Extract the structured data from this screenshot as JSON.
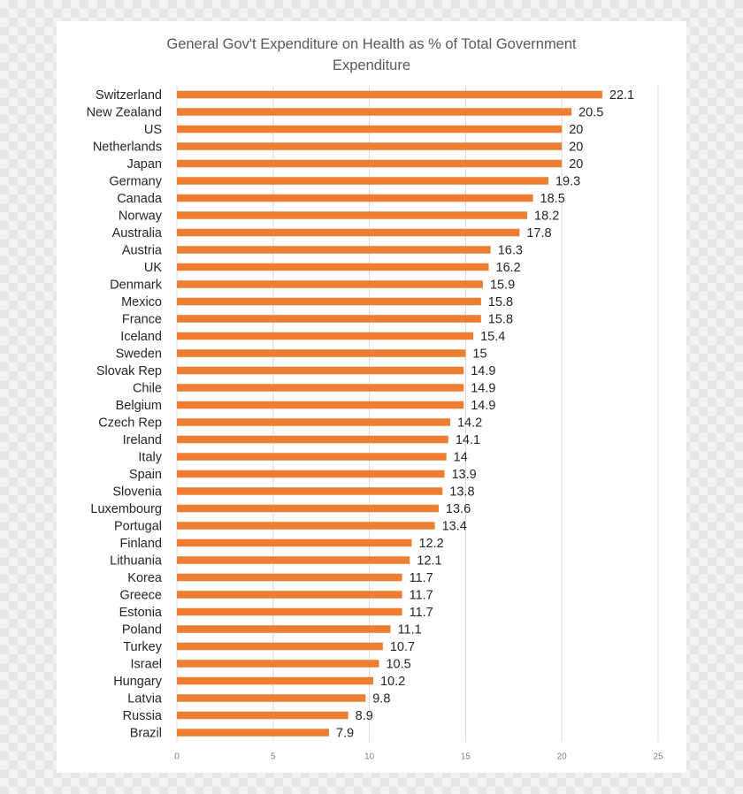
{
  "colors": {
    "bar": "#ED7D31",
    "grid": "#d9d9d9"
  },
  "chart_data": {
    "type": "bar",
    "orientation": "horizontal",
    "title": "General Gov't Expenditure on Health as % of Total Government Expenditure",
    "title_lines": [
      "General Gov't Expenditure on Health as % of Total Government",
      "Expenditure"
    ],
    "xlabel": "",
    "ylabel": "",
    "xlim": [
      0,
      25
    ],
    "xticks": [
      "0",
      "5",
      "10",
      "15",
      "20",
      "25"
    ],
    "grid": true,
    "legend": "none",
    "categories": [
      "Switzerland",
      "New Zealand",
      "US",
      "Netherlands",
      "Japan",
      "Germany",
      "Canada",
      "Norway",
      "Australia",
      "Austria",
      "UK",
      "Denmark",
      "Mexico",
      "France",
      "Iceland",
      "Sweden",
      "Slovak Rep",
      "Chile",
      "Belgium",
      "Czech Rep",
      "Ireland",
      "Italy",
      "Spain",
      "Slovenia",
      "Luxembourg",
      "Portugal",
      "Finland",
      "Lithuania",
      "Korea",
      "Greece",
      "Estonia",
      "Poland",
      "Turkey",
      "Israel",
      "Hungary",
      "Latvia",
      "Russia",
      "Brazil"
    ],
    "values": [
      22.1,
      20.5,
      20,
      20,
      20,
      19.3,
      18.5,
      18.2,
      17.8,
      16.3,
      16.2,
      15.9,
      15.8,
      15.8,
      15.4,
      15,
      14.9,
      14.9,
      14.9,
      14.2,
      14.1,
      14,
      13.9,
      13.8,
      13.6,
      13.4,
      12.2,
      12.1,
      11.7,
      11.7,
      11.7,
      11.1,
      10.7,
      10.5,
      10.2,
      9.8,
      8.9,
      7.9
    ],
    "value_labels": [
      "22.1",
      "20.5",
      "20",
      "20",
      "20",
      "19.3",
      "18.5",
      "18.2",
      "17.8",
      "16.3",
      "16.2",
      "15.9",
      "15.8",
      "15.8",
      "15.4",
      "15",
      "14.9",
      "14.9",
      "14.9",
      "14.2",
      "14.1",
      "14",
      "13.9",
      "13.8",
      "13.6",
      "13.4",
      "12.2",
      "12.1",
      "11.7",
      "11.7",
      "11.7",
      "11.1",
      "10.7",
      "10.5",
      "10.2",
      "9.8",
      "8.9",
      "7.9"
    ]
  }
}
